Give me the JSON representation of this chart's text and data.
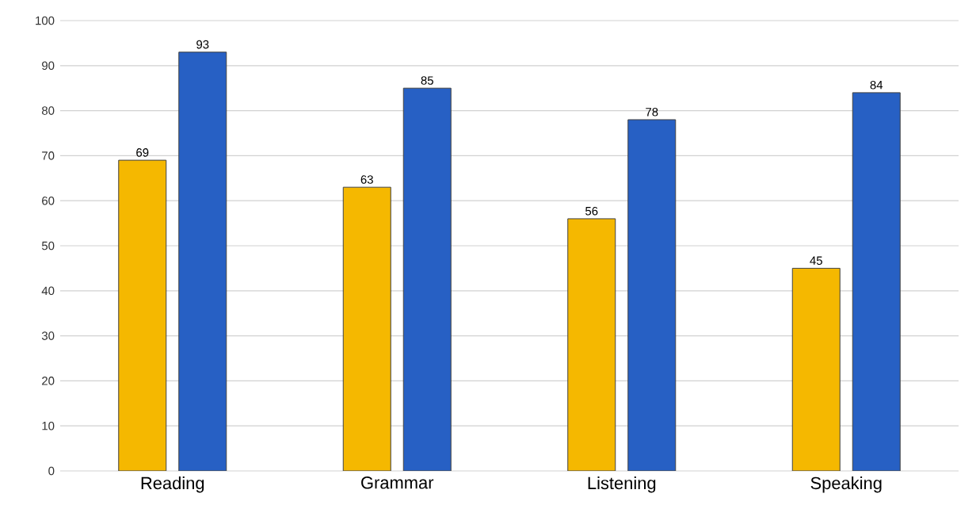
{
  "chart_data": {
    "type": "bar",
    "categories": [
      "Reading",
      "Grammar",
      "Listening",
      "Speaking"
    ],
    "series": [
      {
        "color": "#f5b800",
        "values": [
          69,
          63,
          56,
          45
        ]
      },
      {
        "color": "#2760c4",
        "values": [
          93,
          85,
          78,
          84
        ]
      }
    ],
    "ylim": [
      0,
      100
    ],
    "yticks": [
      0,
      10,
      20,
      30,
      40,
      50,
      60,
      70,
      80,
      90,
      100
    ],
    "grid": "y",
    "data_labels": true
  }
}
